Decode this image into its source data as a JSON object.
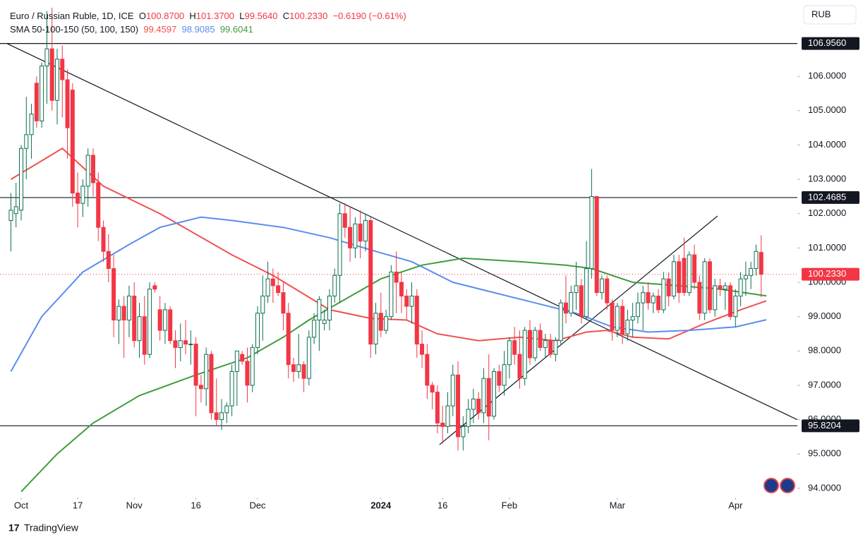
{
  "chart_data": {
    "type": "candlestick",
    "header": {
      "symbol": "Euro / Russian Ruble, 1D, ICE",
      "o_label": "O",
      "o": "100.8700",
      "h_label": "H",
      "h": "101.3700",
      "l_label": "L",
      "l": "99.5640",
      "c_label": "C",
      "c": "100.2330",
      "change": "−0.6190 (−0.61%)"
    },
    "indicator": {
      "name": "SMA 50-100-150 (50, 100, 150)"
    },
    "currency": "RUB",
    "brand": "TradingView",
    "up_color": "#0b6e52",
    "down_color": "#f23645",
    "candles": [
      [
        101.8,
        102.6,
        100.9,
        102.1
      ],
      [
        102.0,
        102.9,
        101.6,
        102.2
      ],
      [
        102.1,
        104.0,
        101.8,
        103.9
      ],
      [
        103.9,
        105.4,
        103.0,
        104.3
      ],
      [
        104.3,
        105.2,
        103.6,
        104.9
      ],
      [
        105.8,
        106.0,
        104.5,
        104.7
      ],
      [
        104.7,
        106.4,
        104.5,
        106.3
      ],
      [
        106.3,
        107.9,
        105.2,
        106.8
      ],
      [
        106.8,
        108.0,
        105.0,
        105.3
      ],
      [
        105.3,
        106.8,
        104.6,
        106.5
      ],
      [
        106.5,
        106.9,
        104.8,
        105.9
      ],
      [
        105.9,
        106.2,
        103.6,
        104.5
      ],
      [
        105.6,
        105.8,
        102.2,
        102.6
      ],
      [
        102.6,
        103.2,
        101.6,
        102.3
      ],
      [
        102.3,
        103.0,
        101.9,
        102.8
      ],
      [
        102.8,
        103.9,
        102.2,
        103.7
      ],
      [
        103.7,
        103.9,
        102.5,
        102.9
      ],
      [
        102.9,
        103.2,
        101.2,
        101.6
      ],
      [
        101.6,
        101.8,
        100.6,
        100.9
      ],
      [
        100.9,
        101.4,
        100.0,
        100.4
      ],
      [
        100.4,
        100.8,
        98.4,
        98.9
      ],
      [
        98.9,
        99.5,
        98.2,
        99.3
      ],
      [
        99.3,
        99.6,
        97.8,
        98.9
      ],
      [
        98.9,
        99.9,
        98.4,
        99.6
      ],
      [
        99.6,
        100.0,
        98.1,
        98.3
      ],
      [
        98.3,
        99.4,
        97.8,
        99.0
      ],
      [
        99.0,
        99.6,
        97.6,
        97.9
      ],
      [
        97.9,
        100.0,
        97.8,
        99.8
      ],
      [
        99.9,
        100.0,
        99.7,
        99.8
      ],
      [
        99.2,
        99.6,
        98.3,
        98.6
      ],
      [
        98.6,
        99.4,
        98.2,
        99.2
      ],
      [
        99.2,
        99.3,
        98.2,
        98.3
      ],
      [
        98.3,
        98.6,
        97.5,
        98.1
      ],
      [
        98.1,
        98.8,
        97.7,
        98.3
      ],
      [
        98.3,
        98.9,
        97.9,
        98.2
      ],
      [
        98.2,
        98.6,
        97.6,
        98.2
      ],
      [
        98.2,
        98.4,
        96.1,
        97.0
      ],
      [
        97.0,
        97.3,
        96.5,
        96.9
      ],
      [
        96.9,
        98.1,
        96.4,
        97.9
      ],
      [
        97.9,
        98.0,
        96.0,
        96.2
      ],
      [
        96.2,
        97.2,
        95.8,
        96.0
      ],
      [
        96.0,
        96.6,
        95.7,
        96.2
      ],
      [
        96.2,
        96.5,
        95.9,
        96.4
      ],
      [
        96.4,
        97.6,
        96.1,
        97.4
      ],
      [
        97.4,
        98.0,
        96.4,
        98.0
      ],
      [
        97.9,
        98.0,
        97.6,
        97.7
      ],
      [
        97.7,
        98.1,
        96.5,
        97.0
      ],
      [
        97.0,
        98.2,
        96.8,
        98.1
      ],
      [
        98.1,
        99.3,
        97.9,
        99.1
      ],
      [
        99.1,
        100.2,
        98.3,
        99.6
      ],
      [
        99.6,
        100.6,
        99.4,
        100.1
      ],
      [
        100.1,
        100.4,
        99.4,
        99.9
      ],
      [
        99.9,
        100.3,
        99.6,
        99.7
      ],
      [
        99.7,
        100.0,
        98.6,
        99.1
      ],
      [
        99.1,
        99.4,
        97.2,
        97.6
      ],
      [
        97.6,
        97.8,
        97.1,
        97.4
      ],
      [
        97.4,
        98.5,
        97.2,
        97.6
      ],
      [
        97.6,
        97.7,
        96.8,
        97.2
      ],
      [
        97.2,
        98.6,
        97.0,
        98.4
      ],
      [
        98.4,
        99.1,
        98.2,
        98.9
      ],
      [
        98.9,
        99.6,
        98.0,
        99.5
      ],
      [
        98.8,
        99.2,
        98.6,
        98.9
      ],
      [
        98.9,
        99.8,
        98.6,
        99.6
      ],
      [
        99.6,
        100.4,
        99.4,
        100.2
      ],
      [
        100.2,
        102.3,
        99.4,
        102.0
      ],
      [
        102.0,
        102.3,
        101.3,
        101.6
      ],
      [
        101.6,
        102.2,
        100.6,
        101.0
      ],
      [
        101.0,
        101.9,
        100.7,
        101.7
      ],
      [
        101.7,
        102.1,
        100.7,
        101.2
      ],
      [
        101.2,
        102.0,
        100.9,
        101.8
      ],
      [
        101.8,
        101.9,
        97.8,
        98.2
      ],
      [
        98.2,
        99.4,
        97.9,
        99.1
      ],
      [
        99.1,
        99.7,
        98.4,
        98.6
      ],
      [
        98.6,
        99.2,
        98.5,
        99.0
      ],
      [
        99.0,
        100.5,
        98.9,
        100.3
      ],
      [
        100.3,
        100.9,
        99.1,
        100.0
      ],
      [
        100.0,
        100.3,
        99.1,
        99.6
      ],
      [
        99.6,
        99.8,
        98.9,
        99.3
      ],
      [
        99.3,
        100.0,
        98.8,
        99.6
      ],
      [
        99.6,
        99.8,
        97.8,
        98.2
      ],
      [
        98.2,
        98.6,
        97.5,
        97.9
      ],
      [
        97.9,
        98.2,
        96.6,
        97.0
      ],
      [
        97.0,
        97.1,
        96.3,
        96.8
      ],
      [
        96.8,
        97.0,
        95.6,
        95.9
      ],
      [
        95.9,
        96.4,
        95.3,
        95.8
      ],
      [
        95.8,
        96.8,
        95.6,
        96.4
      ],
      [
        96.4,
        97.6,
        96.1,
        97.3
      ],
      [
        97.3,
        97.7,
        95.1,
        95.5
      ],
      [
        95.5,
        96.1,
        95.1,
        95.8
      ],
      [
        95.8,
        96.6,
        95.6,
        96.3
      ],
      [
        96.3,
        96.9,
        95.9,
        96.6
      ],
      [
        96.6,
        96.8,
        96.0,
        96.2
      ],
      [
        96.2,
        97.5,
        95.9,
        97.2
      ],
      [
        97.2,
        97.9,
        95.4,
        96.1
      ],
      [
        96.1,
        97.5,
        96.0,
        97.4
      ],
      [
        97.4,
        97.6,
        96.8,
        97.0
      ],
      [
        97.0,
        98.0,
        96.7,
        97.6
      ],
      [
        97.6,
        98.4,
        97.2,
        98.3
      ],
      [
        98.3,
        98.7,
        97.6,
        97.9
      ],
      [
        97.9,
        98.6,
        96.9,
        97.2
      ],
      [
        97.2,
        98.7,
        97.0,
        98.6
      ],
      [
        98.6,
        98.9,
        97.6,
        97.8
      ],
      [
        97.8,
        98.7,
        97.7,
        98.6
      ],
      [
        98.6,
        98.8,
        98.0,
        98.1
      ],
      [
        98.1,
        98.5,
        97.8,
        98.3
      ],
      [
        98.3,
        98.5,
        97.8,
        97.9
      ],
      [
        97.9,
        98.4,
        97.7,
        98.3
      ],
      [
        98.3,
        99.5,
        98.2,
        99.4
      ],
      [
        99.4,
        100.2,
        98.8,
        99.1
      ],
      [
        99.1,
        99.9,
        99.0,
        99.7
      ],
      [
        99.7,
        100.6,
        99.2,
        99.9
      ],
      [
        99.9,
        100.1,
        98.8,
        99.0
      ],
      [
        99.0,
        101.2,
        98.9,
        100.4
      ],
      [
        100.4,
        103.3,
        100.1,
        102.5
      ],
      [
        102.5,
        102.5,
        99.6,
        99.7
      ],
      [
        99.7,
        100.2,
        99.5,
        100.1
      ],
      [
        100.1,
        100.2,
        99.2,
        99.4
      ],
      [
        99.4,
        99.5,
        98.3,
        98.6
      ],
      [
        98.6,
        99.4,
        98.4,
        99.3
      ],
      [
        99.3,
        99.5,
        98.2,
        98.5
      ],
      [
        98.5,
        99.2,
        98.3,
        98.9
      ],
      [
        98.9,
        99.4,
        98.4,
        99.0
      ],
      [
        99.0,
        99.7,
        98.8,
        99.4
      ],
      [
        99.4,
        99.9,
        98.6,
        99.7
      ],
      [
        99.7,
        100.0,
        99.2,
        99.4
      ],
      [
        99.4,
        99.7,
        99.1,
        99.6
      ],
      [
        99.6,
        99.8,
        99.1,
        99.2
      ],
      [
        99.2,
        100.3,
        99.1,
        100.1
      ],
      [
        100.1,
        100.3,
        99.3,
        99.6
      ],
      [
        99.6,
        100.8,
        99.5,
        100.6
      ],
      [
        100.6,
        100.8,
        99.4,
        99.7
      ],
      [
        100.7,
        101.3,
        99.6,
        99.7
      ],
      [
        99.7,
        100.9,
        99.6,
        100.8
      ],
      [
        100.8,
        101.1,
        99.8,
        100.0
      ],
      [
        100.0,
        100.2,
        98.9,
        99.1
      ],
      [
        99.1,
        100.7,
        98.9,
        100.6
      ],
      [
        100.6,
        100.7,
        99.1,
        99.2
      ],
      [
        99.2,
        100.1,
        99.0,
        99.9
      ],
      [
        99.9,
        100.1,
        99.6,
        99.8
      ],
      [
        99.8,
        100.0,
        99.2,
        99.9
      ],
      [
        99.9,
        100.0,
        98.9,
        99.0
      ],
      [
        99.0,
        99.8,
        98.7,
        99.6
      ],
      [
        99.6,
        100.3,
        99.3,
        100.1
      ],
      [
        100.1,
        100.6,
        99.6,
        100.2
      ],
      [
        100.2,
        100.6,
        99.8,
        100.4
      ],
      [
        100.4,
        101.1,
        100.2,
        100.9
      ],
      [
        100.87,
        101.37,
        99.564,
        100.233
      ]
    ],
    "series": [
      {
        "color": "#f0514f",
        "last": "99.4597",
        "x": [
          0,
          10,
          18,
          29,
          43,
          51,
          62,
          70,
          77,
          83,
          91,
          99,
          106,
          112,
          116,
          121,
          128,
          135,
          142,
          147
        ],
        "values": [
          103.0,
          103.9,
          102.8,
          102.0,
          100.8,
          100.2,
          99.2,
          98.95,
          98.9,
          98.5,
          98.3,
          98.4,
          98.3,
          98.55,
          98.6,
          98.4,
          98.35,
          98.8,
          99.2,
          99.4597
        ]
      },
      {
        "color": "#5b8def",
        "last": "98.9085",
        "x": [
          0,
          6,
          14,
          23,
          29,
          37,
          43,
          53,
          62,
          71,
          78,
          86,
          94,
          102,
          110,
          117,
          124,
          132,
          141,
          147
        ],
        "values": [
          97.4,
          99.0,
          100.3,
          101.1,
          101.6,
          101.9,
          101.8,
          101.6,
          101.3,
          100.9,
          100.6,
          100.0,
          99.7,
          99.4,
          99.1,
          98.7,
          98.55,
          98.6,
          98.7,
          98.9085
        ]
      },
      {
        "color": "#3f9c3f",
        "last": "99.6041",
        "x": [
          2,
          9,
          16,
          25,
          36,
          46,
          53,
          58,
          65,
          72,
          80,
          88,
          99,
          108,
          113,
          121,
          130,
          138,
          147
        ],
        "values": [
          93.9,
          95.0,
          95.9,
          96.7,
          97.3,
          97.8,
          98.4,
          98.9,
          99.5,
          100.1,
          100.5,
          100.7,
          100.6,
          100.5,
          100.4,
          100.0,
          99.9,
          99.8,
          99.6041
        ]
      }
    ],
    "levels": [
      {
        "value": 106.956,
        "label": "106.9560"
      },
      {
        "value": 102.4685,
        "label": "102.4685"
      },
      {
        "value": 95.8204,
        "label": "95.8204"
      }
    ],
    "last_price": {
      "value": 100.233,
      "label": "100.2330"
    },
    "trendlines": [
      {
        "x": [
          -0.7,
          153
        ],
        "y": [
          106.95,
          96.0
        ]
      },
      {
        "x": [
          83.4,
          137.5
        ],
        "y": [
          95.27,
          101.93
        ]
      }
    ],
    "xlim": [
      -2.12,
      153.04
    ],
    "xticks": [
      {
        "value": 2,
        "label": "Oct"
      },
      {
        "value": 13,
        "label": "17"
      },
      {
        "value": 24,
        "label": "Nov"
      },
      {
        "value": 36,
        "label": "16"
      },
      {
        "value": 48,
        "label": "Dec"
      },
      {
        "value": 72,
        "label": "2024"
      },
      {
        "value": 84,
        "label": "16"
      },
      {
        "value": 97,
        "label": "Feb"
      },
      {
        "value": 118,
        "label": "Mar"
      },
      {
        "value": 141,
        "label": "Apr"
      }
    ],
    "ylim": [
      93.73,
      108.12
    ],
    "yticks": [
      {
        "value": 94,
        "label": "94.0000"
      },
      {
        "value": 95,
        "label": "95.0000"
      },
      {
        "value": 96,
        "label": "96.0000"
      },
      {
        "value": 97,
        "label": "97.0000"
      },
      {
        "value": 98,
        "label": "98.0000"
      },
      {
        "value": 99,
        "label": "99.0000"
      },
      {
        "value": 100,
        "label": "100.0000"
      },
      {
        "value": 101,
        "label": "101.0000"
      },
      {
        "value": 102,
        "label": "102.0000"
      },
      {
        "value": 103,
        "label": "103.0000"
      },
      {
        "value": 104,
        "label": "104.0000"
      },
      {
        "value": 105,
        "label": "105.0000"
      },
      {
        "value": 106,
        "label": "106.0000"
      }
    ]
  }
}
